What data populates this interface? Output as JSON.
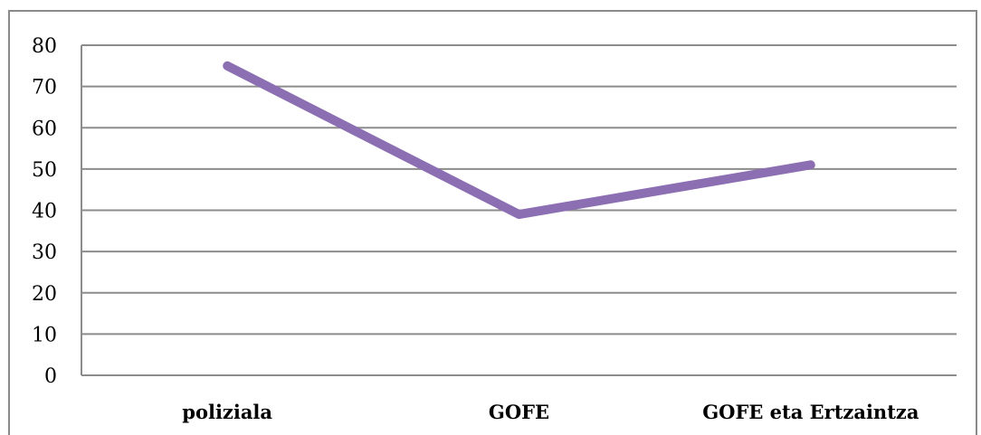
{
  "chart_data": {
    "type": "line",
    "categories": [
      "poliziala",
      "GOFE",
      "GOFE eta Ertzaintza"
    ],
    "series": [
      {
        "values": [
          75,
          39,
          51
        ],
        "color": "#8c6fb3"
      }
    ],
    "yticks": [
      0,
      10,
      20,
      30,
      40,
      50,
      60,
      70,
      80
    ],
    "ylim": [
      0,
      80
    ],
    "grid": true,
    "legend": "none",
    "title": "",
    "xlabel": "",
    "ylabel": ""
  }
}
